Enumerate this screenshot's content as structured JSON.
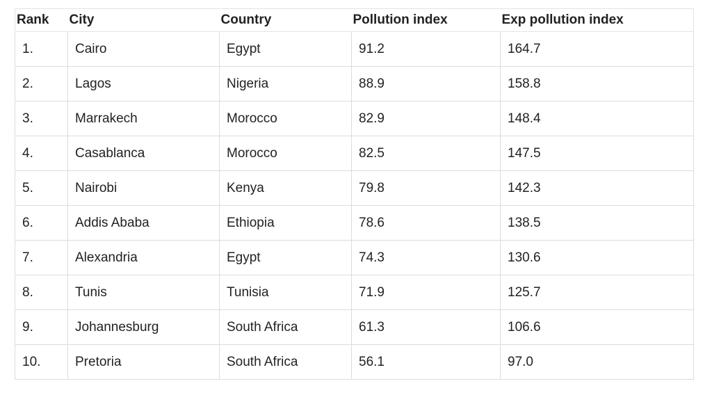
{
  "table": {
    "headers": [
      "Rank",
      "City",
      "Country",
      "Pollution index",
      "Exp pollution index"
    ],
    "rows": [
      [
        "1.",
        "Cairo",
        "Egypt",
        "91.2",
        "164.7"
      ],
      [
        "2.",
        "Lagos",
        "Nigeria",
        "88.9",
        "158.8"
      ],
      [
        "3.",
        "Marrakech",
        "Morocco",
        "82.9",
        "148.4"
      ],
      [
        "4.",
        "Casablanca",
        "Morocco",
        "82.5",
        "147.5"
      ],
      [
        "5.",
        "Nairobi",
        "Kenya",
        "79.8",
        "142.3"
      ],
      [
        "6.",
        "Addis Ababa",
        "Ethiopia",
        "78.6",
        "138.5"
      ],
      [
        "7.",
        "Alexandria",
        "Egypt",
        "74.3",
        "130.6"
      ],
      [
        "8.",
        "Tunis",
        "Tunisia",
        "71.9",
        "125.7"
      ],
      [
        "9.",
        "Johannesburg",
        "South Africa",
        "61.3",
        "106.6"
      ],
      [
        "10.",
        "Pretoria",
        "South Africa",
        "56.1",
        "97.0"
      ]
    ]
  }
}
